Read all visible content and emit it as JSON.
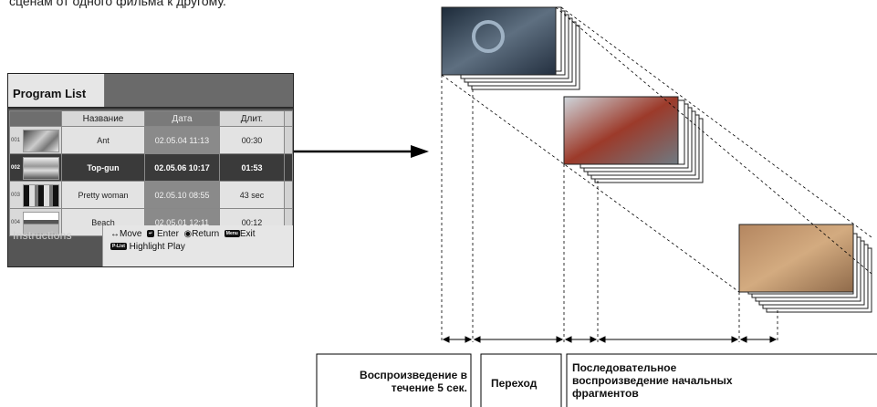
{
  "caption": "сценам от одного фильма к другому.",
  "program_list": {
    "title": "Program List",
    "headers": {
      "name": "Название",
      "date": "Дата",
      "duration": "Длит."
    },
    "rows": [
      {
        "num": "001",
        "name": "Ant",
        "date": "02.05.04 11:13",
        "duration": "00:30",
        "selected": false
      },
      {
        "num": "002",
        "name": "Top-gun",
        "date": "02.05.06 10:17",
        "duration": "01:53",
        "selected": true
      },
      {
        "num": "003",
        "name": "Pretty woman",
        "date": "02.05.10 08:55",
        "duration": "43 sec",
        "selected": false
      },
      {
        "num": "004",
        "name": "Beach",
        "date": "02.05.01 12:11",
        "duration": "00:12",
        "selected": false
      }
    ],
    "instructions_label": "Instructions",
    "instr": {
      "move": "Move",
      "enter": "Enter",
      "return": "Return",
      "exit": "Exit",
      "menu_key": "Menu",
      "plist_key": "P-List",
      "highlight": "Highlight Play"
    }
  },
  "labels": {
    "playback": "Воспроизведение в течение 5 сек.",
    "playback_l1": "Воспроизведение в",
    "playback_l2": "течение 5 сек.",
    "transition": "Переход",
    "sequential_l1": "Последовательное",
    "sequential_l2": "воспроизведение начальных",
    "sequential_l3": "фрагментов"
  },
  "colors": {
    "selected_row": "#3a3a3a",
    "panel": "#555555",
    "arrow": "#000000"
  }
}
